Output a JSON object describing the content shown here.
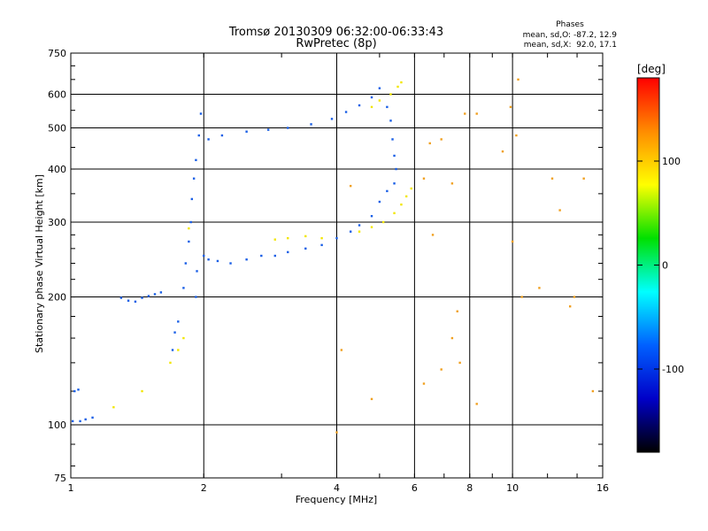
{
  "chart_data": {
    "type": "scatter",
    "title": "Tromsø 20130309 06:32:00-06:33:43",
    "subtitle": "RwPretec (8p)",
    "xlabel": "Frequency [MHz]",
    "ylabel": "Stationary phase Virtual Height [km]",
    "xscale": "log",
    "yscale": "log",
    "xlim": [
      1,
      16
    ],
    "ylim": [
      75,
      750
    ],
    "x_ticks": [
      1,
      2,
      4,
      6,
      8,
      10,
      16
    ],
    "x_tick_labels": [
      "1",
      "2",
      "4",
      "6",
      "8",
      "10",
      "16"
    ],
    "x_grid": [
      2,
      4,
      6,
      8,
      10
    ],
    "y_ticks": [
      75,
      100,
      200,
      300,
      400,
      500,
      600,
      750
    ],
    "y_tick_labels": [
      "75",
      "100",
      "200",
      "300",
      "400",
      "500",
      "600",
      "750"
    ],
    "y_grid": [
      100,
      200,
      300,
      400,
      500,
      600
    ],
    "grid": true,
    "stats": {
      "heading": "Phases",
      "line1": "mean, sd,O: -87.2, 12.9",
      "line2": "mean, sd,X:  92.0, 17.1"
    },
    "colorbar": {
      "unit": "[deg]",
      "range": [
        -180,
        180
      ],
      "ticks": [
        100,
        0,
        -100
      ],
      "tick_labels": [
        "100",
        "0",
        "-100"
      ],
      "colors": [
        "#ff0000",
        "#ff8c00",
        "#ffff00",
        "#00e000",
        "#00ffff",
        "#0060ff",
        "#0000c8",
        "#000000"
      ]
    },
    "series": [
      {
        "name": "O",
        "color": "#1a5fe6",
        "phase": -87.2,
        "points": [
          [
            1.01,
            102
          ],
          [
            1.05,
            102
          ],
          [
            1.08,
            103
          ],
          [
            1.12,
            104
          ],
          [
            1.02,
            120
          ],
          [
            1.04,
            121
          ],
          [
            1.3,
            199
          ],
          [
            1.35,
            196
          ],
          [
            1.4,
            195
          ],
          [
            1.45,
            199
          ],
          [
            1.5,
            201
          ],
          [
            1.55,
            203
          ],
          [
            1.6,
            205
          ],
          [
            1.7,
            150
          ],
          [
            1.72,
            165
          ],
          [
            1.75,
            175
          ],
          [
            1.8,
            210
          ],
          [
            1.82,
            240
          ],
          [
            1.85,
            270
          ],
          [
            1.87,
            300
          ],
          [
            1.88,
            340
          ],
          [
            1.9,
            380
          ],
          [
            1.92,
            420
          ],
          [
            1.95,
            480
          ],
          [
            1.97,
            540
          ],
          [
            1.92,
            200
          ],
          [
            1.93,
            230
          ],
          [
            2.0,
            250
          ],
          [
            2.05,
            245
          ],
          [
            2.15,
            243
          ],
          [
            2.3,
            240
          ],
          [
            2.5,
            245
          ],
          [
            2.7,
            250
          ],
          [
            2.9,
            250
          ],
          [
            3.1,
            255
          ],
          [
            3.4,
            260
          ],
          [
            3.7,
            265
          ],
          [
            4.0,
            275
          ],
          [
            4.3,
            285
          ],
          [
            4.5,
            295
          ],
          [
            4.8,
            310
          ],
          [
            5.0,
            335
          ],
          [
            5.2,
            355
          ],
          [
            5.4,
            370
          ],
          [
            2.05,
            470
          ],
          [
            2.2,
            480
          ],
          [
            2.5,
            490
          ],
          [
            2.8,
            495
          ],
          [
            3.1,
            500
          ],
          [
            3.5,
            510
          ],
          [
            3.9,
            525
          ],
          [
            4.2,
            545
          ],
          [
            4.5,
            565
          ],
          [
            4.8,
            590
          ],
          [
            5.0,
            620
          ],
          [
            5.2,
            560
          ],
          [
            5.3,
            520
          ],
          [
            5.35,
            470
          ],
          [
            5.4,
            430
          ],
          [
            5.45,
            400
          ]
        ]
      },
      {
        "name": "X",
        "color": "#f2e600",
        "phase": 92.0,
        "points": [
          [
            1.85,
            290
          ],
          [
            2.9,
            273
          ],
          [
            3.1,
            275
          ],
          [
            3.4,
            278
          ],
          [
            3.7,
            275
          ],
          [
            4.5,
            285
          ],
          [
            4.8,
            292
          ],
          [
            5.1,
            300
          ],
          [
            5.4,
            315
          ],
          [
            5.6,
            330
          ],
          [
            5.75,
            345
          ],
          [
            5.9,
            360
          ],
          [
            4.8,
            560
          ],
          [
            5.0,
            580
          ],
          [
            5.3,
            600
          ],
          [
            5.5,
            625
          ],
          [
            5.6,
            640
          ],
          [
            1.68,
            140
          ],
          [
            1.75,
            150
          ],
          [
            1.8,
            160
          ],
          [
            1.25,
            110
          ],
          [
            1.45,
            120
          ]
        ]
      },
      {
        "name": "scatter",
        "color": "#f0a020",
        "points": [
          [
            6.3,
            380
          ],
          [
            6.5,
            460
          ],
          [
            6.9,
            470
          ],
          [
            7.3,
            370
          ],
          [
            7.8,
            540
          ],
          [
            8.3,
            540
          ],
          [
            9.9,
            560
          ],
          [
            10.2,
            480
          ],
          [
            6.3,
            125
          ],
          [
            6.9,
            135
          ],
          [
            7.3,
            160
          ],
          [
            7.5,
            185
          ],
          [
            7.6,
            140
          ],
          [
            8.3,
            112
          ],
          [
            10.5,
            200
          ],
          [
            11.5,
            210
          ],
          [
            12.3,
            380
          ],
          [
            12.8,
            320
          ],
          [
            13.5,
            190
          ],
          [
            13.8,
            200
          ],
          [
            14.5,
            380
          ],
          [
            15.2,
            120
          ],
          [
            10.0,
            270
          ],
          [
            6.6,
            280
          ],
          [
            4.0,
            96
          ],
          [
            4.8,
            115
          ],
          [
            4.1,
            150
          ],
          [
            4.3,
            365
          ],
          [
            9.5,
            440
          ],
          [
            10.3,
            650
          ]
        ]
      }
    ]
  }
}
